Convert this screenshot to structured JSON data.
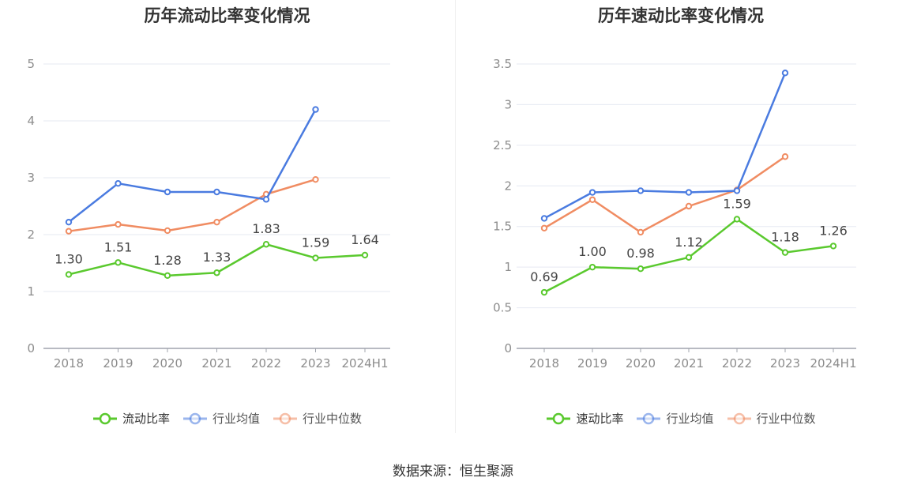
{
  "source_text": "数据来源：恒生聚源",
  "colors": {
    "primary": "#5ac92e",
    "average": "#4a7be0",
    "median": "#f08c62",
    "grid": "#e6e9f2",
    "axis": "#a0a4ad",
    "tick_text": "#8c8c8c"
  },
  "chart_data": [
    {
      "type": "line",
      "title": "历年流动比率变化情况",
      "categories": [
        "2018",
        "2019",
        "2020",
        "2021",
        "2022",
        "2023",
        "2024H1"
      ],
      "y_ticks": [
        "0",
        "1",
        "2",
        "3",
        "4",
        "5"
      ],
      "ylim": [
        0,
        5
      ],
      "grid": true,
      "legend_position": "bottom",
      "series": [
        {
          "name": "流动比率",
          "color": "#5ac92e",
          "labels": true,
          "values": [
            1.3,
            1.51,
            1.28,
            1.33,
            1.83,
            1.59,
            1.64
          ],
          "value_labels": [
            "1.30",
            "1.51",
            "1.28",
            "1.33",
            "1.83",
            "1.59",
            "1.64"
          ]
        },
        {
          "name": "行业均值",
          "color": "#4a7be0",
          "labels": false,
          "values": [
            2.22,
            2.9,
            2.75,
            2.75,
            2.62,
            4.2,
            null
          ]
        },
        {
          "name": "行业中位数",
          "color": "#f08c62",
          "labels": false,
          "values": [
            2.06,
            2.18,
            2.07,
            2.22,
            2.71,
            2.97,
            null
          ]
        }
      ]
    },
    {
      "type": "line",
      "title": "历年速动比率变化情况",
      "categories": [
        "2018",
        "2019",
        "2020",
        "2021",
        "2022",
        "2023",
        "2024H1"
      ],
      "y_ticks": [
        "0",
        "0.5",
        "1",
        "1.5",
        "2",
        "2.5",
        "3",
        "3.5"
      ],
      "ylim": [
        0,
        3.5
      ],
      "grid": true,
      "legend_position": "bottom",
      "series": [
        {
          "name": "速动比率",
          "color": "#5ac92e",
          "labels": true,
          "values": [
            0.69,
            1.0,
            0.98,
            1.12,
            1.59,
            1.18,
            1.26
          ],
          "value_labels": [
            "0.69",
            "1.00",
            "0.98",
            "1.12",
            "1.59",
            "1.18",
            "1.26"
          ]
        },
        {
          "name": "行业均值",
          "color": "#4a7be0",
          "labels": false,
          "values": [
            1.6,
            1.92,
            1.94,
            1.92,
            1.94,
            3.39,
            null
          ]
        },
        {
          "name": "行业中位数",
          "color": "#f08c62",
          "labels": false,
          "values": [
            1.48,
            1.83,
            1.43,
            1.75,
            1.95,
            2.36,
            null
          ]
        }
      ]
    }
  ]
}
